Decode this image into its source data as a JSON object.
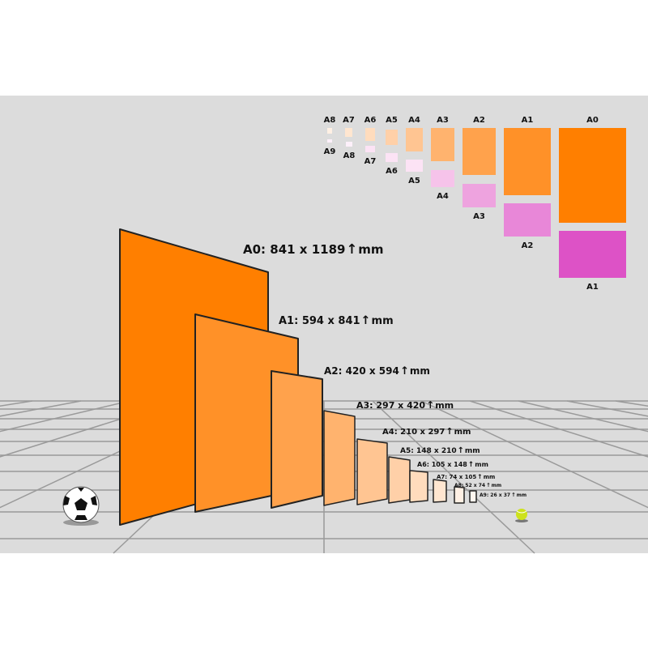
{
  "colors": {
    "background": "#dcdcdc",
    "orange_scale": [
      "#ff7f00",
      "#ff9128",
      "#ffa24c",
      "#ffb36e",
      "#ffc592",
      "#ffd0a8",
      "#ffdcbd",
      "#ffe6d0",
      "#fff0e4",
      "#fff6ef"
    ],
    "pink_scale": [
      "#dd52c6",
      "#e887d8",
      "#eea3df",
      "#f6c3ea",
      "#fce3f5",
      "#fdf0fa"
    ]
  },
  "overview": {
    "top_labels": [
      "A8",
      "A7",
      "A6",
      "A5",
      "A4",
      "A3",
      "A2",
      "A1",
      "A0"
    ],
    "bottom_labels": [
      "A9",
      "A8",
      "A7",
      "A6",
      "A5",
      "A4",
      "A3",
      "A2",
      "A1"
    ]
  },
  "sheets": [
    {
      "name": "A0",
      "label": "A0: 841 x 1189",
      "unit": "mm"
    },
    {
      "name": "A1",
      "label": "A1: 594 x 841",
      "unit": "mm"
    },
    {
      "name": "A2",
      "label": "A2: 420 x 594",
      "unit": "mm"
    },
    {
      "name": "A3",
      "label": "A3: 297 x 420",
      "unit": "mm"
    },
    {
      "name": "A4",
      "label": "A4: 210 x 297",
      "unit": "mm"
    },
    {
      "name": "A5",
      "label": "A5: 148 x 210",
      "unit": "mm"
    },
    {
      "name": "A6",
      "label": "A6: 105 x 148",
      "unit": "mm"
    },
    {
      "name": "A7",
      "label": "A7: 74 x 105",
      "unit": "mm"
    },
    {
      "name": "A8",
      "label": "A8: 52 x 74",
      "unit": "mm"
    },
    {
      "name": "A9",
      "label": "A9: 26 x 37",
      "unit": "mm"
    }
  ]
}
